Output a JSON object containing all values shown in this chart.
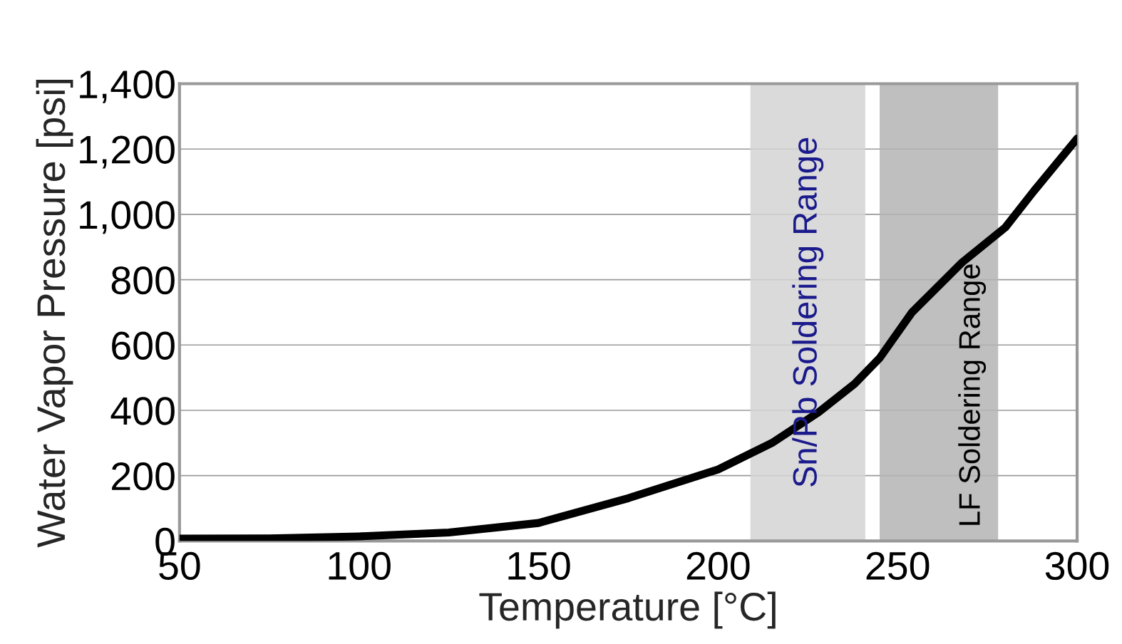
{
  "chart_data": {
    "type": "line",
    "xlabel": "Temperature [°C]",
    "ylabel": "Water Vapor Pressure [psi]",
    "xlim": [
      50,
      300
    ],
    "xticks": [
      50,
      100,
      150,
      200,
      250,
      300
    ],
    "ylim": [
      0,
      1400
    ],
    "yticks": [
      0,
      {
        "value": 200,
        "label": "200"
      },
      {
        "value": 400,
        "label": "400"
      },
      {
        "value": 600,
        "label": "600"
      },
      {
        "value": 800,
        "label": "800"
      },
      {
        "value": 1000,
        "label": "1,000"
      },
      {
        "value": 1200,
        "label": "1,200"
      },
      {
        "value": 1400,
        "label": "1,400"
      }
    ],
    "grid": "y",
    "line_style": "solid",
    "x": [
      50,
      75,
      100,
      125,
      150,
      175,
      200,
      215,
      228,
      238,
      245,
      254,
      268,
      280,
      288,
      300
    ],
    "series": [
      {
        "color": "#000000",
        "values": [
          7,
          8,
          14,
          26,
          55,
          131,
          219,
          300,
          394,
          481,
          560,
          700,
          853,
          960,
          1072,
          1232
        ]
      }
    ],
    "bands": [
      {
        "axis": "x",
        "from": 209,
        "to": 241,
        "label": "Sn/Pb Soldering Range",
        "color": "#d4d4d4"
      },
      {
        "axis": "x",
        "from": 245,
        "to": 278,
        "label": "LF Soldering Range",
        "color": "#b4b4b4"
      }
    ]
  }
}
